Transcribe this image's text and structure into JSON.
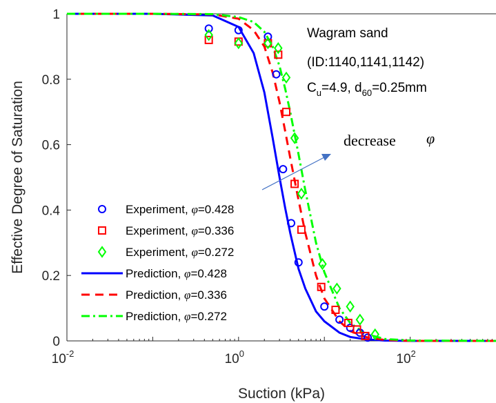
{
  "chart_data": {
    "type": "line",
    "xscale": "log",
    "xlim": [
      0.01,
      1000
    ],
    "ylim": [
      0,
      1
    ],
    "xlabel": "Suction (kPa)",
    "ylabel": "Effective Degree of Saturation",
    "xticks": [
      {
        "base": "10",
        "exp": "-2",
        "value": 0.01
      },
      {
        "base": "10",
        "exp": "0",
        "value": 1
      },
      {
        "base": "10",
        "exp": "2",
        "value": 100
      }
    ],
    "yticks": [
      "0",
      "0.2",
      "0.4",
      "0.6",
      "0.8",
      "1"
    ],
    "grid": false,
    "legend_position": "bottom-left",
    "annotations": {
      "material": "Wagram sand",
      "ids": "(ID:1140,1141,1142)",
      "cu_label": "C",
      "cu_sub": "u",
      "cu_value": "=4.9, d",
      "d60_sub": "60",
      "d60_value": "=0.25mm",
      "arrow_text": "decrease",
      "arrow_symbol": "φ"
    },
    "series": [
      {
        "name": "Experiment, φ=0.428",
        "prefix": "Experiment, ",
        "phi": "=0.428",
        "kind": "marker",
        "marker": "circle",
        "color": "#0000ff",
        "x": [
          0.45,
          1.0,
          2.2,
          2.75,
          3.3,
          4.1,
          5.0,
          10.0,
          15.0,
          20.0,
          26.0,
          32.0
        ],
        "y": [
          0.955,
          0.95,
          0.93,
          0.815,
          0.525,
          0.36,
          0.24,
          0.105,
          0.065,
          0.04,
          0.025,
          0.01
        ]
      },
      {
        "name": "Experiment, φ=0.336",
        "prefix": "Experiment, ",
        "phi": "=0.336",
        "kind": "marker",
        "marker": "square",
        "color": "#ff0000",
        "x": [
          0.45,
          1.0,
          2.2,
          2.9,
          3.6,
          4.5,
          5.4,
          9.2,
          13.5,
          19.0,
          24.0,
          30.0
        ],
        "y": [
          0.92,
          0.915,
          0.91,
          0.875,
          0.7,
          0.48,
          0.34,
          0.165,
          0.095,
          0.055,
          0.035,
          0.015
        ]
      },
      {
        "name": "Experiment, φ=0.272",
        "prefix": "Experiment, ",
        "phi": "=0.272",
        "kind": "marker",
        "marker": "diamond",
        "color": "#00ff00",
        "x": [
          0.45,
          1.0,
          2.2,
          2.9,
          3.6,
          4.5,
          5.4,
          9.5,
          14.0,
          20.0,
          26.0,
          39.0
        ],
        "y": [
          0.935,
          0.91,
          0.91,
          0.895,
          0.805,
          0.62,
          0.45,
          0.235,
          0.16,
          0.105,
          0.065,
          0.02
        ]
      },
      {
        "name": "Prediction, φ=0.428",
        "prefix": "Prediction, ",
        "phi": "=0.428",
        "kind": "line",
        "dash": "solid",
        "color": "#0000ff",
        "x": [
          0.01,
          0.1,
          0.5,
          1,
          1.5,
          2,
          2.5,
          3,
          3.5,
          4,
          5,
          6,
          8,
          10,
          15,
          20,
          30,
          50,
          100,
          1000
        ],
        "y": [
          1.0,
          1.0,
          0.995,
          0.96,
          0.88,
          0.76,
          0.62,
          0.5,
          0.405,
          0.33,
          0.22,
          0.16,
          0.09,
          0.06,
          0.025,
          0.012,
          0.005,
          0.001,
          0.0,
          0.0
        ]
      },
      {
        "name": "Prediction, φ=0.336",
        "prefix": "Prediction, ",
        "phi": "=0.336",
        "kind": "line",
        "dash": "dashed",
        "color": "#ff0000",
        "x": [
          0.01,
          0.1,
          0.5,
          1,
          1.5,
          2,
          2.5,
          3,
          3.5,
          4,
          5,
          6,
          8,
          10,
          15,
          20,
          30,
          50,
          100,
          1000
        ],
        "y": [
          1.0,
          1.0,
          0.998,
          0.985,
          0.95,
          0.9,
          0.82,
          0.73,
          0.64,
          0.56,
          0.43,
          0.33,
          0.2,
          0.13,
          0.06,
          0.03,
          0.012,
          0.003,
          0.0,
          0.0
        ]
      },
      {
        "name": "Prediction, φ=0.272",
        "prefix": "Prediction, ",
        "phi": "=0.272",
        "kind": "line",
        "dash": "dashdot",
        "color": "#00ff00",
        "x": [
          0.01,
          0.1,
          0.5,
          1,
          1.5,
          2,
          2.5,
          3,
          3.5,
          4,
          5,
          6,
          8,
          10,
          15,
          20,
          30,
          50,
          100,
          1000
        ],
        "y": [
          1.0,
          1.0,
          0.999,
          0.99,
          0.975,
          0.945,
          0.9,
          0.84,
          0.77,
          0.7,
          0.57,
          0.46,
          0.3,
          0.21,
          0.1,
          0.055,
          0.022,
          0.006,
          0.001,
          0.0
        ]
      }
    ]
  }
}
